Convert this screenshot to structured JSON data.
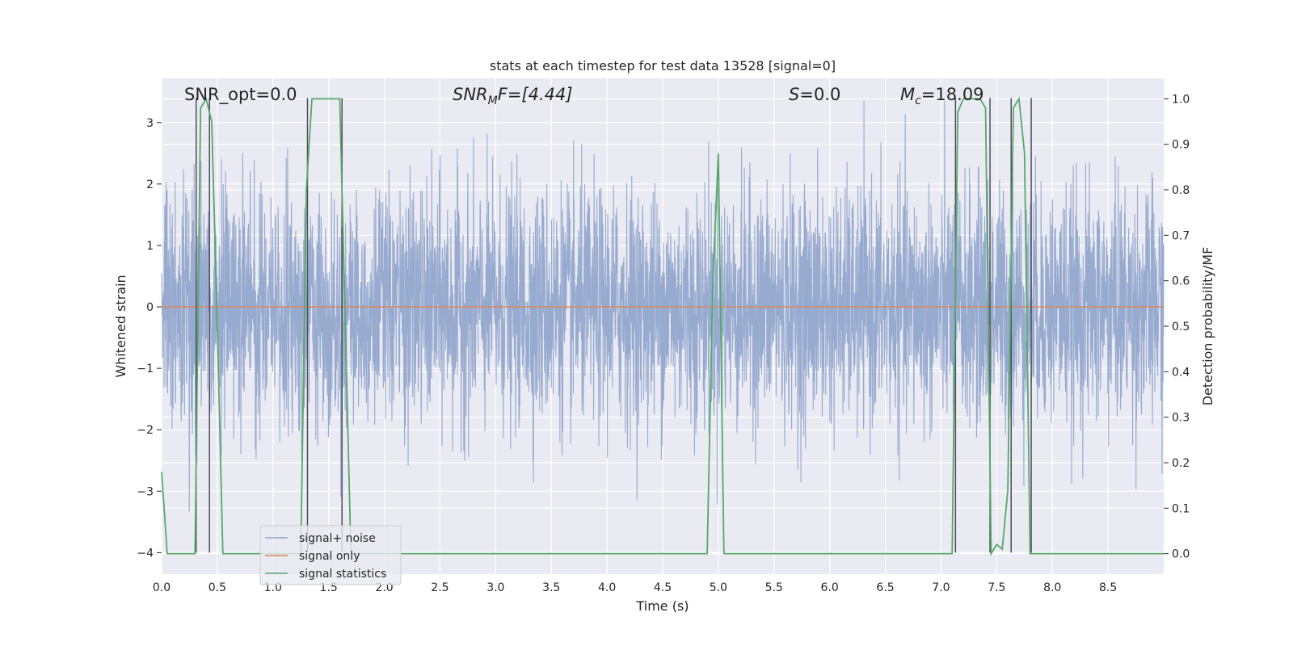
{
  "chart_data": {
    "type": "line",
    "title": "stats at each timestep for test data 13528 [signal=0]",
    "xlabel": "Time (s)",
    "ylabel": "Whitened strain",
    "y2label": "Detection probability/MF",
    "xlim": [
      0,
      9.0
    ],
    "ylim": [
      -4.35,
      3.72
    ],
    "y2lim": [
      -0.045,
      1.045
    ],
    "x_ticks": [
      0.0,
      0.5,
      1.0,
      1.5,
      2.0,
      2.5,
      3.0,
      3.5,
      4.0,
      4.5,
      5.0,
      5.5,
      6.0,
      6.5,
      7.0,
      7.5,
      8.0,
      8.5
    ],
    "y_ticks": [
      3,
      2,
      1,
      0,
      -1,
      -2,
      -3,
      -4
    ],
    "y2_ticks": [
      1.0,
      0.9,
      0.8,
      0.7,
      0.6,
      0.5,
      0.4,
      0.3,
      0.2,
      0.1,
      0.0
    ],
    "grid": true,
    "legend_position": "lower-left",
    "annotations": {
      "snr_opt": "SNR_opt=0.0",
      "snr_mf_main": "SNR",
      "snr_mf_sub": "M",
      "snr_mf_rest": "F=[4.44]",
      "s_main": "S",
      "s_rest": "=0.0",
      "mc_main": "M",
      "mc_sub": "c",
      "mc_rest": "=18.09"
    },
    "series": [
      {
        "name": "signal+ noise",
        "color": "#92a6cc",
        "description_values": "dense whitened noise, amplitude ~ ±1.2 core with spikes to ±3.4"
      },
      {
        "name": "signal only",
        "color": "#dd8452",
        "x": [
          0.0,
          9.0
        ],
        "y": [
          0.0,
          0.0
        ]
      },
      {
        "name": "signal statistics",
        "color": "#55a868",
        "axis": "right",
        "x": [
          0.0,
          0.05,
          0.1,
          0.15,
          0.2,
          0.25,
          0.3,
          0.35,
          0.4,
          0.45,
          0.5,
          0.55,
          0.6,
          1.25,
          1.3,
          1.35,
          1.4,
          1.45,
          1.5,
          1.55,
          1.6,
          1.65,
          1.7,
          1.75,
          4.9,
          4.95,
          5.0,
          5.05,
          5.1,
          7.1,
          7.15,
          7.2,
          7.25,
          7.3,
          7.35,
          7.4,
          7.45,
          7.5,
          7.55,
          7.6,
          7.65,
          7.7,
          7.75,
          7.8,
          7.85,
          7.9,
          9.0
        ],
        "y": [
          0.18,
          0.0,
          0.0,
          0.0,
          0.0,
          0.0,
          0.0,
          0.98,
          1.0,
          0.95,
          0.5,
          0.0,
          0.0,
          0.0,
          0.8,
          1.0,
          1.0,
          1.0,
          1.0,
          1.0,
          1.0,
          0.5,
          0.0,
          0.0,
          0.0,
          0.6,
          0.88,
          0.0,
          0.0,
          0.0,
          0.97,
          1.0,
          1.0,
          1.0,
          1.0,
          0.98,
          0.0,
          0.02,
          0.01,
          0.14,
          0.98,
          1.0,
          0.88,
          0.0,
          0.0,
          0.0,
          0.0
        ]
      }
    ],
    "vlines": {
      "color": "#4c4c5c",
      "x": [
        0.31,
        0.43,
        1.31,
        1.62,
        7.13,
        7.44,
        7.63,
        7.81
      ],
      "y_range": [
        -4.0,
        3.4
      ]
    }
  }
}
